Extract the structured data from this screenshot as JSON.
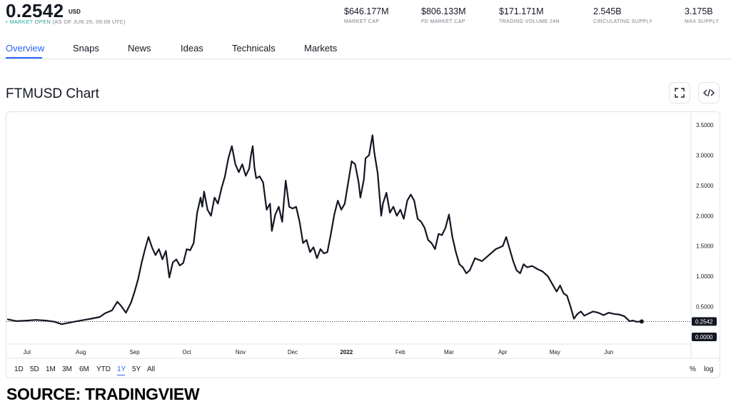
{
  "header": {
    "price": "0.2542",
    "unit": "USD",
    "market_dot": "•",
    "market_open": "MARKET OPEN",
    "as_of": "(AS OF JUN 20, 09:09 UTC)",
    "stats": [
      {
        "value": "$646.177M",
        "label": "MARKET CAP"
      },
      {
        "value": "$806.133M",
        "label": "FD MARKET CAP"
      },
      {
        "value": "$171.171M",
        "label": "TRADING VOLUME 24H"
      },
      {
        "value": "2.545B",
        "label": "CIRCULATING SUPPLY"
      },
      {
        "value": "3.175B",
        "label": "MAX SUPPLY"
      }
    ]
  },
  "tabs": [
    "Overview",
    "Snaps",
    "News",
    "Ideas",
    "Technicals",
    "Markets"
  ],
  "chart_title": "FTMUSD Chart",
  "icons": {
    "fullscreen": "fullscreen-icon",
    "embed": "embed-code-icon"
  },
  "range_buttons": [
    "1D",
    "5D",
    "1M",
    "3M",
    "6M",
    "YTD",
    "1Y",
    "5Y",
    "All"
  ],
  "active_range": "1Y",
  "scale_buttons": [
    "%",
    "log"
  ],
  "source": "SOURCE: TRADINGVIEW",
  "colors": {
    "accent": "#2962ff",
    "line": "#131722",
    "open": "#26a69a"
  },
  "chart_data": {
    "type": "line",
    "symbol": "FTMUSD",
    "x_tick_labels": [
      "Jul",
      "Aug",
      "Sep",
      "Oct",
      "Nov",
      "Dec",
      "2022",
      "Feb",
      "Mar",
      "Apr",
      "May",
      "Jun"
    ],
    "y_tick_labels": [
      "3.5000",
      "3.0000",
      "2.5000",
      "2.0000",
      "1.5000",
      "1.0000",
      "0.5000",
      "0.0000"
    ],
    "y_ticks": [
      3.5,
      3.0,
      2.5,
      2.0,
      1.5,
      1.0,
      0.5,
      0.0
    ],
    "ylim": [
      0,
      3.5
    ],
    "last_value_label": "0.2542",
    "last_value": 0.2542,
    "grid": false,
    "series": [
      {
        "values": [
          {
            "x": "2021-06-20",
            "y": 0.29
          },
          {
            "x": "2021-06-25",
            "y": 0.26
          },
          {
            "x": "2021-07-01",
            "y": 0.27
          },
          {
            "x": "2021-07-06",
            "y": 0.28
          },
          {
            "x": "2021-07-12",
            "y": 0.27
          },
          {
            "x": "2021-07-17",
            "y": 0.25
          },
          {
            "x": "2021-07-21",
            "y": 0.21
          },
          {
            "x": "2021-07-28",
            "y": 0.25
          },
          {
            "x": "2021-08-03",
            "y": 0.28
          },
          {
            "x": "2021-08-07",
            "y": 0.3
          },
          {
            "x": "2021-08-12",
            "y": 0.33
          },
          {
            "x": "2021-08-15",
            "y": 0.39
          },
          {
            "x": "2021-08-19",
            "y": 0.44
          },
          {
            "x": "2021-08-22",
            "y": 0.58
          },
          {
            "x": "2021-08-24",
            "y": 0.52
          },
          {
            "x": "2021-08-27",
            "y": 0.4
          },
          {
            "x": "2021-08-30",
            "y": 0.57
          },
          {
            "x": "2021-09-01",
            "y": 0.75
          },
          {
            "x": "2021-09-03",
            "y": 0.95
          },
          {
            "x": "2021-09-05",
            "y": 1.22
          },
          {
            "x": "2021-09-07",
            "y": 1.45
          },
          {
            "x": "2021-09-09",
            "y": 1.65
          },
          {
            "x": "2021-09-11",
            "y": 1.48
          },
          {
            "x": "2021-09-13",
            "y": 1.35
          },
          {
            "x": "2021-09-15",
            "y": 1.45
          },
          {
            "x": "2021-09-17",
            "y": 1.28
          },
          {
            "x": "2021-09-19",
            "y": 1.42
          },
          {
            "x": "2021-09-21",
            "y": 0.98
          },
          {
            "x": "2021-09-23",
            "y": 1.23
          },
          {
            "x": "2021-09-25",
            "y": 1.28
          },
          {
            "x": "2021-09-27",
            "y": 1.18
          },
          {
            "x": "2021-09-29",
            "y": 1.22
          },
          {
            "x": "2021-10-01",
            "y": 1.45
          },
          {
            "x": "2021-10-03",
            "y": 1.43
          },
          {
            "x": "2021-10-05",
            "y": 1.55
          },
          {
            "x": "2021-10-07",
            "y": 2.05
          },
          {
            "x": "2021-10-09",
            "y": 2.3
          },
          {
            "x": "2021-10-10",
            "y": 2.15
          },
          {
            "x": "2021-10-11",
            "y": 2.4
          },
          {
            "x": "2021-10-13",
            "y": 2.1
          },
          {
            "x": "2021-10-15",
            "y": 2.0
          },
          {
            "x": "2021-10-17",
            "y": 2.3
          },
          {
            "x": "2021-10-19",
            "y": 2.2
          },
          {
            "x": "2021-10-21",
            "y": 2.45
          },
          {
            "x": "2021-10-23",
            "y": 2.65
          },
          {
            "x": "2021-10-25",
            "y": 2.95
          },
          {
            "x": "2021-10-27",
            "y": 3.15
          },
          {
            "x": "2021-10-29",
            "y": 2.85
          },
          {
            "x": "2021-10-31",
            "y": 2.72
          },
          {
            "x": "2021-11-02",
            "y": 2.85
          },
          {
            "x": "2021-11-04",
            "y": 2.66
          },
          {
            "x": "2021-11-06",
            "y": 2.78
          },
          {
            "x": "2021-11-07",
            "y": 3.0
          },
          {
            "x": "2021-11-08",
            "y": 3.15
          },
          {
            "x": "2021-11-09",
            "y": 2.8
          },
          {
            "x": "2021-11-10",
            "y": 2.62
          },
          {
            "x": "2021-11-12",
            "y": 2.65
          },
          {
            "x": "2021-11-14",
            "y": 2.55
          },
          {
            "x": "2021-11-16",
            "y": 2.1
          },
          {
            "x": "2021-11-18",
            "y": 2.2
          },
          {
            "x": "2021-11-19",
            "y": 1.75
          },
          {
            "x": "2021-11-21",
            "y": 2.02
          },
          {
            "x": "2021-11-23",
            "y": 2.15
          },
          {
            "x": "2021-11-25",
            "y": 1.9
          },
          {
            "x": "2021-11-27",
            "y": 2.58
          },
          {
            "x": "2021-11-29",
            "y": 2.15
          },
          {
            "x": "2021-12-01",
            "y": 2.12
          },
          {
            "x": "2021-12-03",
            "y": 2.15
          },
          {
            "x": "2021-12-05",
            "y": 1.9
          },
          {
            "x": "2021-12-07",
            "y": 1.55
          },
          {
            "x": "2021-12-09",
            "y": 1.6
          },
          {
            "x": "2021-12-11",
            "y": 1.4
          },
          {
            "x": "2021-12-13",
            "y": 1.48
          },
          {
            "x": "2021-12-15",
            "y": 1.3
          },
          {
            "x": "2021-12-17",
            "y": 1.45
          },
          {
            "x": "2021-12-19",
            "y": 1.38
          },
          {
            "x": "2021-12-21",
            "y": 1.4
          },
          {
            "x": "2021-12-23",
            "y": 1.7
          },
          {
            "x": "2021-12-25",
            "y": 2.02
          },
          {
            "x": "2021-12-27",
            "y": 2.25
          },
          {
            "x": "2021-12-29",
            "y": 2.1
          },
          {
            "x": "2021-12-31",
            "y": 2.2
          },
          {
            "x": "2022-01-02",
            "y": 2.55
          },
          {
            "x": "2022-01-04",
            "y": 2.9
          },
          {
            "x": "2022-01-06",
            "y": 2.85
          },
          {
            "x": "2022-01-08",
            "y": 2.55
          },
          {
            "x": "2022-01-09",
            "y": 2.3
          },
          {
            "x": "2022-01-11",
            "y": 2.6
          },
          {
            "x": "2022-01-12",
            "y": 2.95
          },
          {
            "x": "2022-01-14",
            "y": 3.0
          },
          {
            "x": "2022-01-16",
            "y": 3.33
          },
          {
            "x": "2022-01-17",
            "y": 3.05
          },
          {
            "x": "2022-01-19",
            "y": 2.7
          },
          {
            "x": "2022-01-21",
            "y": 2.0
          },
          {
            "x": "2022-01-22",
            "y": 2.2
          },
          {
            "x": "2022-01-24",
            "y": 2.38
          },
          {
            "x": "2022-01-26",
            "y": 2.05
          },
          {
            "x": "2022-01-28",
            "y": 2.15
          },
          {
            "x": "2022-01-30",
            "y": 2.0
          },
          {
            "x": "2022-02-01",
            "y": 2.1
          },
          {
            "x": "2022-02-03",
            "y": 1.95
          },
          {
            "x": "2022-02-05",
            "y": 2.25
          },
          {
            "x": "2022-02-07",
            "y": 2.35
          },
          {
            "x": "2022-02-09",
            "y": 2.25
          },
          {
            "x": "2022-02-11",
            "y": 1.95
          },
          {
            "x": "2022-02-13",
            "y": 1.9
          },
          {
            "x": "2022-02-15",
            "y": 1.8
          },
          {
            "x": "2022-02-17",
            "y": 1.6
          },
          {
            "x": "2022-02-19",
            "y": 1.55
          },
          {
            "x": "2022-02-21",
            "y": 1.45
          },
          {
            "x": "2022-02-23",
            "y": 1.7
          },
          {
            "x": "2022-02-25",
            "y": 1.68
          },
          {
            "x": "2022-02-27",
            "y": 1.8
          },
          {
            "x": "2022-03-01",
            "y": 2.02
          },
          {
            "x": "2022-03-03",
            "y": 1.65
          },
          {
            "x": "2022-03-05",
            "y": 1.4
          },
          {
            "x": "2022-03-07",
            "y": 1.2
          },
          {
            "x": "2022-03-09",
            "y": 1.15
          },
          {
            "x": "2022-03-11",
            "y": 1.05
          },
          {
            "x": "2022-03-13",
            "y": 1.1
          },
          {
            "x": "2022-03-16",
            "y": 1.3
          },
          {
            "x": "2022-03-20",
            "y": 1.25
          },
          {
            "x": "2022-03-24",
            "y": 1.35
          },
          {
            "x": "2022-03-28",
            "y": 1.45
          },
          {
            "x": "2022-04-01",
            "y": 1.5
          },
          {
            "x": "2022-04-03",
            "y": 1.65
          },
          {
            "x": "2022-04-05",
            "y": 1.45
          },
          {
            "x": "2022-04-07",
            "y": 1.25
          },
          {
            "x": "2022-04-09",
            "y": 1.1
          },
          {
            "x": "2022-04-11",
            "y": 1.05
          },
          {
            "x": "2022-04-13",
            "y": 1.2
          },
          {
            "x": "2022-04-15",
            "y": 1.15
          },
          {
            "x": "2022-04-18",
            "y": 1.17
          },
          {
            "x": "2022-04-21",
            "y": 1.12
          },
          {
            "x": "2022-04-24",
            "y": 1.08
          },
          {
            "x": "2022-04-27",
            "y": 1.0
          },
          {
            "x": "2022-04-30",
            "y": 0.85
          },
          {
            "x": "2022-05-02",
            "y": 0.75
          },
          {
            "x": "2022-05-04",
            "y": 0.85
          },
          {
            "x": "2022-05-06",
            "y": 0.72
          },
          {
            "x": "2022-05-08",
            "y": 0.68
          },
          {
            "x": "2022-05-10",
            "y": 0.5
          },
          {
            "x": "2022-05-12",
            "y": 0.3
          },
          {
            "x": "2022-05-14",
            "y": 0.38
          },
          {
            "x": "2022-05-16",
            "y": 0.42
          },
          {
            "x": "2022-05-18",
            "y": 0.35
          },
          {
            "x": "2022-05-20",
            "y": 0.38
          },
          {
            "x": "2022-05-23",
            "y": 0.42
          },
          {
            "x": "2022-05-26",
            "y": 0.4
          },
          {
            "x": "2022-05-29",
            "y": 0.36
          },
          {
            "x": "2022-06-01",
            "y": 0.4
          },
          {
            "x": "2022-06-04",
            "y": 0.38
          },
          {
            "x": "2022-06-07",
            "y": 0.37
          },
          {
            "x": "2022-06-10",
            "y": 0.34
          },
          {
            "x": "2022-06-13",
            "y": 0.26
          },
          {
            "x": "2022-06-15",
            "y": 0.27
          },
          {
            "x": "2022-06-17",
            "y": 0.25
          },
          {
            "x": "2022-06-20",
            "y": 0.2542
          }
        ]
      }
    ]
  }
}
